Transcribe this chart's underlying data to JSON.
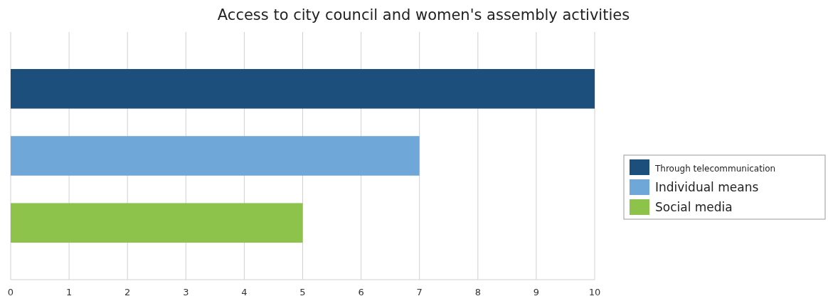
{
  "chart_data": {
    "type": "bar",
    "orientation": "horizontal",
    "title": "Access to city council and women's assembly activities",
    "categories": [
      null
    ],
    "series": [
      {
        "name": "Through telecommunication",
        "color": "#1d4f7c",
        "values": [
          10
        ]
      },
      {
        "name": "Individual means",
        "color": "#6fa8d8",
        "values": [
          7
        ]
      },
      {
        "name": "Social media",
        "color": "#8dc34a",
        "values": [
          5
        ]
      }
    ],
    "xlim": [
      0,
      10
    ],
    "xticks": [
      0,
      1,
      2,
      3,
      4,
      5,
      6,
      7,
      8,
      9,
      10
    ],
    "grid": "x",
    "legend": "right"
  }
}
